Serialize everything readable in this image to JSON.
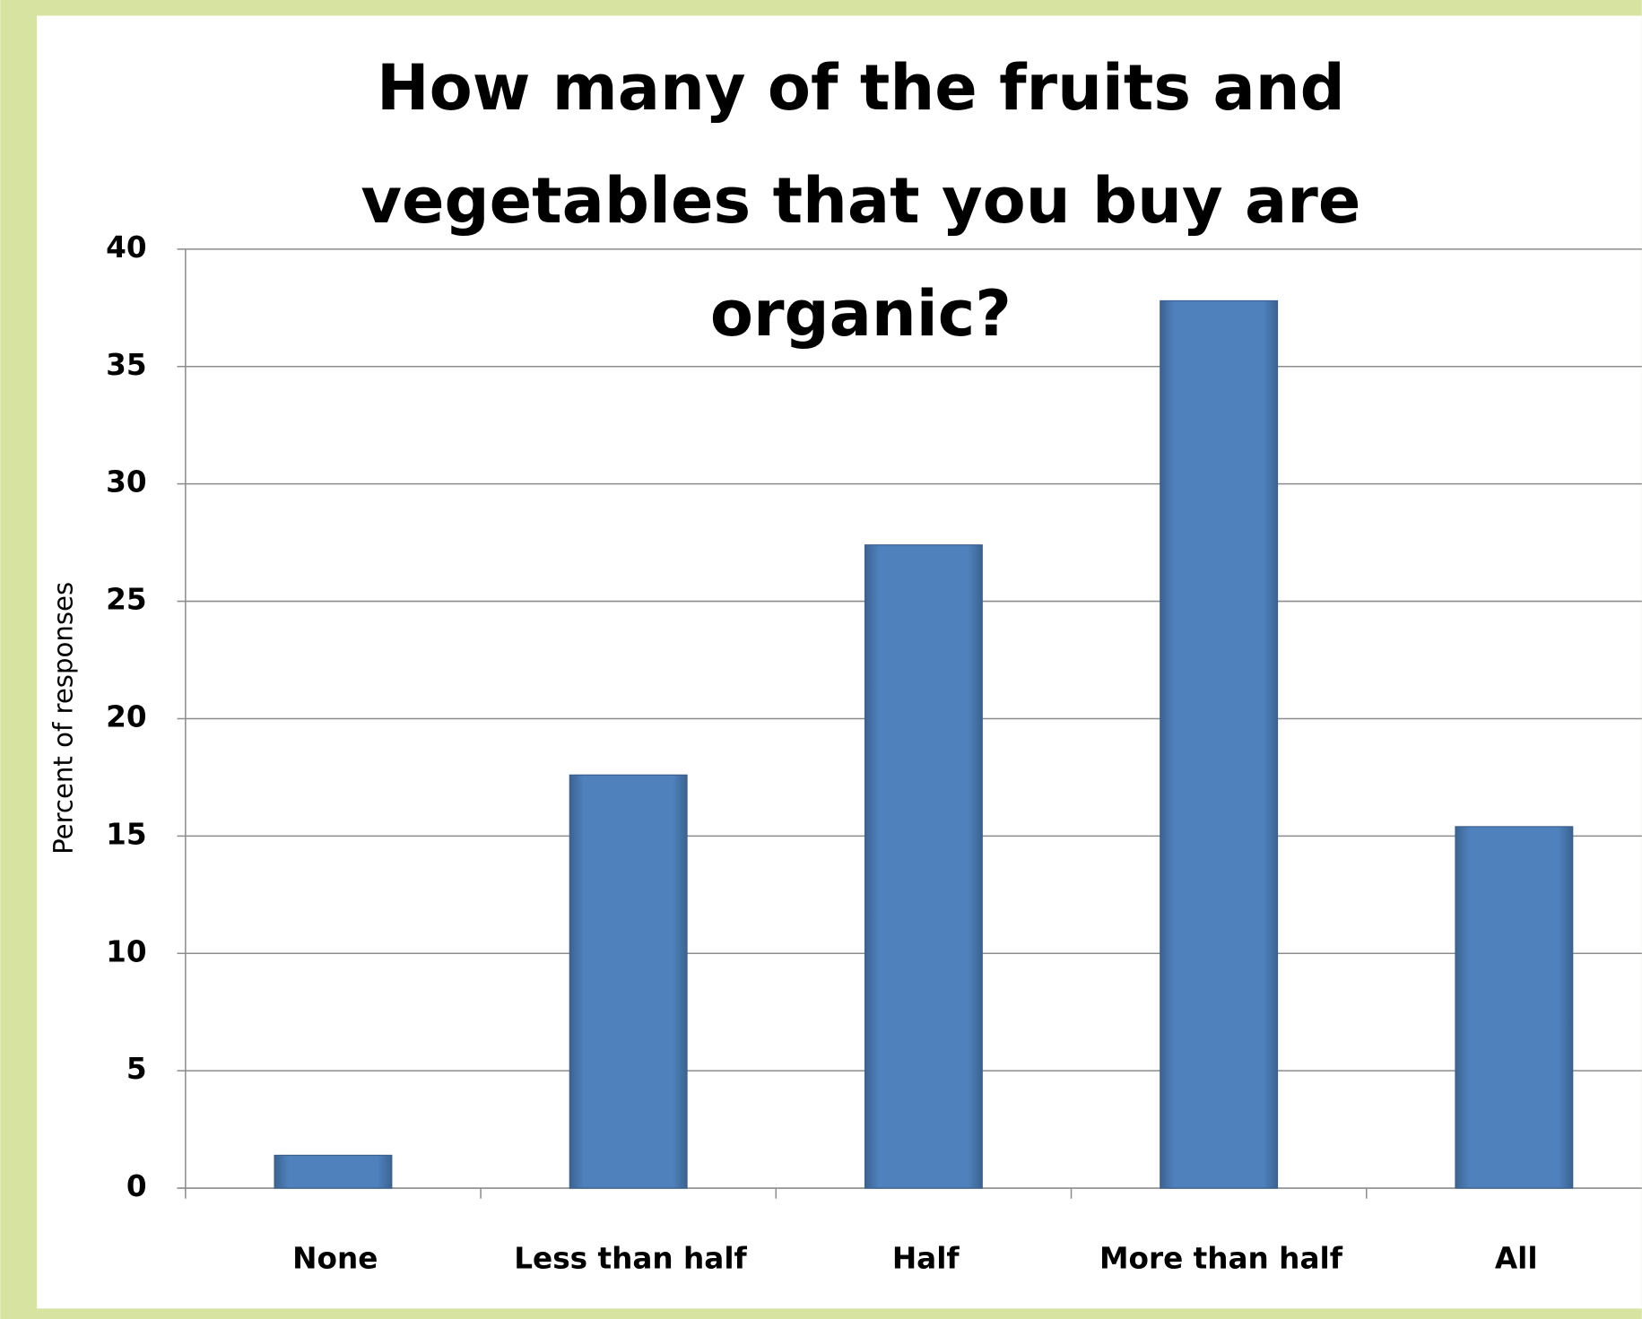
{
  "chart_data": {
    "type": "bar",
    "title": [
      "How many of the fruits and",
      "vegetables that you buy are",
      "organic?"
    ],
    "y_label": "Percent of responses",
    "categories": [
      "None",
      "Less than half",
      "Half",
      "More than half",
      "All"
    ],
    "values": [
      1.4,
      17.6,
      27.4,
      37.8,
      15.4
    ],
    "color": "#4f81bd",
    "ylim": [
      0,
      40
    ],
    "yticks": [
      0,
      5,
      10,
      15,
      20,
      25,
      30,
      35,
      40
    ],
    "grid": true
  }
}
